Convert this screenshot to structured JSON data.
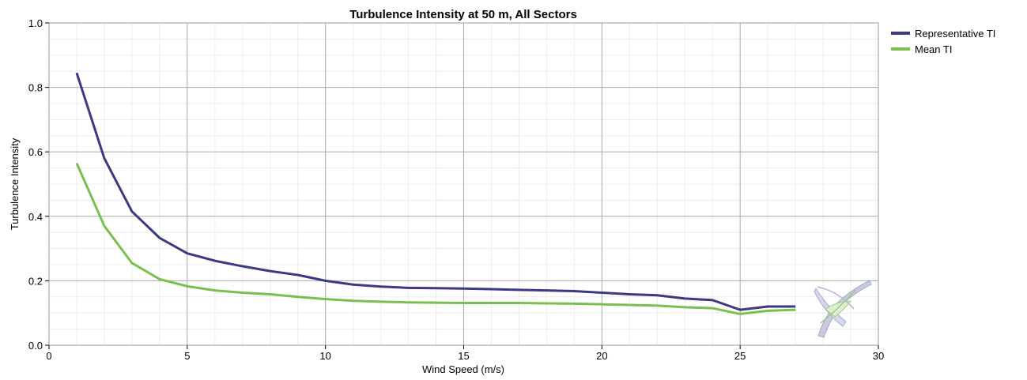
{
  "chart_data": {
    "type": "line",
    "title": "Turbulence Intensity at 50 m, All Sectors",
    "xlabel": "Wind Speed (m/s)",
    "ylabel": "Turbulence Intensity",
    "xlim": [
      0,
      30
    ],
    "ylim": [
      0,
      1.0
    ],
    "x_ticks": [
      "0",
      "5",
      "10",
      "15",
      "20",
      "25",
      "30"
    ],
    "y_ticks": [
      "0.0",
      "0.2",
      "0.4",
      "0.6",
      "0.8",
      "1.0"
    ],
    "grid": true,
    "legend_position": "top-right outside",
    "x": [
      1,
      2,
      3,
      4,
      5,
      6,
      7,
      8,
      9,
      10,
      11,
      12,
      13,
      14,
      15,
      16,
      17,
      18,
      19,
      20,
      21,
      22,
      23,
      24,
      25,
      26,
      27
    ],
    "series": [
      {
        "name": "Representative TI",
        "color": "#3a3a84",
        "values": [
          0.845,
          0.58,
          0.415,
          0.333,
          0.285,
          0.262,
          0.245,
          0.23,
          0.218,
          0.2,
          0.188,
          0.182,
          0.178,
          0.177,
          0.176,
          0.174,
          0.172,
          0.17,
          0.168,
          0.163,
          0.158,
          0.155,
          0.145,
          0.14,
          0.11,
          0.12,
          0.12
        ]
      },
      {
        "name": "Mean TI",
        "color": "#79c04e",
        "values": [
          0.565,
          0.37,
          0.255,
          0.205,
          0.183,
          0.17,
          0.163,
          0.158,
          0.15,
          0.143,
          0.138,
          0.135,
          0.133,
          0.132,
          0.131,
          0.131,
          0.131,
          0.13,
          0.129,
          0.127,
          0.125,
          0.123,
          0.118,
          0.115,
          0.097,
          0.107,
          0.11
        ]
      }
    ]
  }
}
